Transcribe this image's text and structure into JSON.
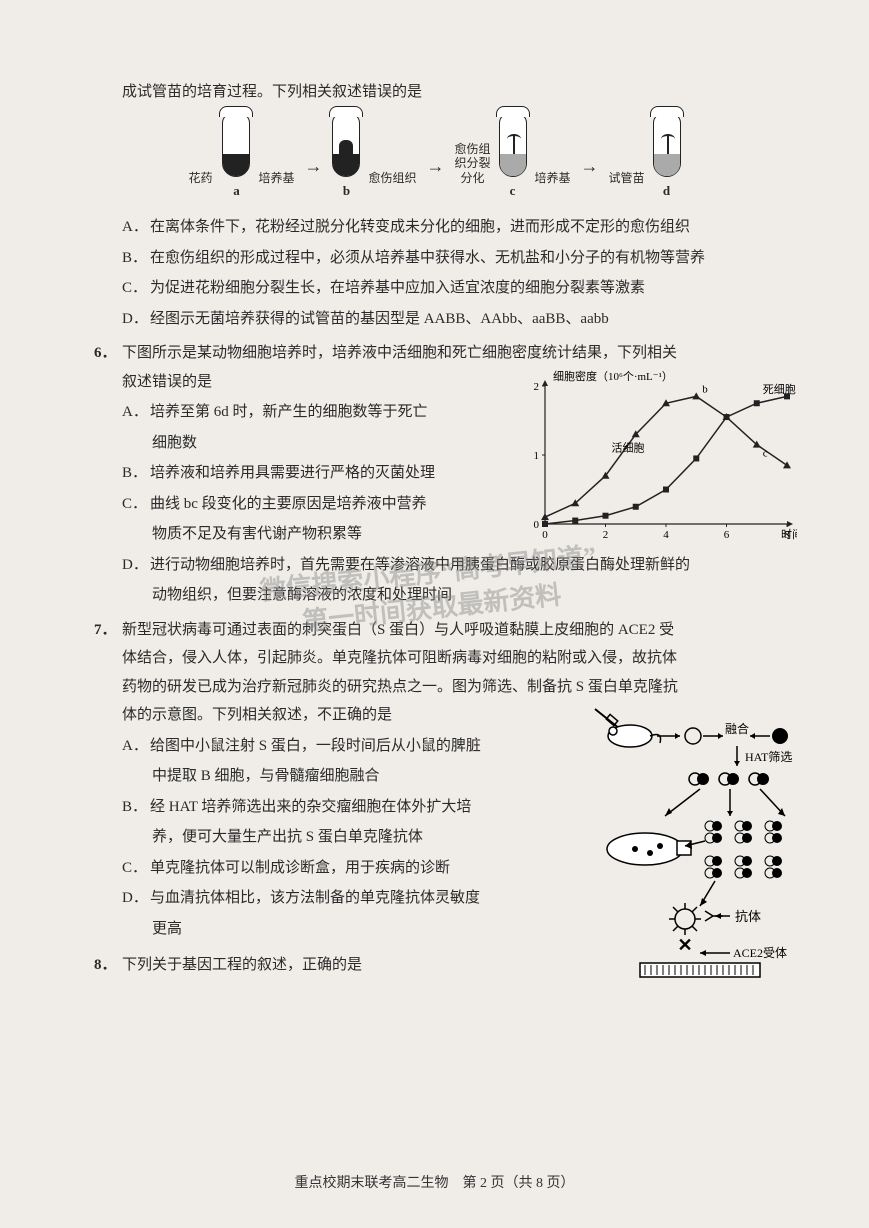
{
  "q5": {
    "stem_cont": "成试管苗的培育过程。下列相关叙述错误的是",
    "diagram": {
      "labels": {
        "anther": "花药",
        "medium": "培养基",
        "callus": "愈伤组织",
        "callus_div": "愈伤组\n织分裂\n分化",
        "plantlet": "试管苗"
      },
      "tube_ids": [
        "a",
        "b",
        "c",
        "d"
      ]
    },
    "A": "在离体条件下，花粉经过脱分化转变成未分化的细胞，进而形成不定形的愈伤组织",
    "B": "在愈伤组织的形成过程中，必须从培养基中获得水、无机盐和小分子的有机物等营养",
    "C": "为促进花粉细胞分裂生长，在培养基中应加入适宜浓度的细胞分裂素等激素",
    "D": "经图示无菌培养获得的试管苗的基因型是 AABB、AAbb、aaBB、aabb"
  },
  "q6": {
    "num": "6．",
    "stem1": "下图所示是某动物细胞培养时，培养液中活细胞和死亡细胞密度统计结果，下列相关",
    "stem2": "叙述错误的是",
    "A": "培养至第 6d 时，新产生的细胞数等于死亡",
    "A2": "细胞数",
    "B": "培养液和培养用具需要进行严格的灭菌处理",
    "C": "曲线 bc 段变化的主要原因是培养液中营养",
    "C2": "物质不足及有害代谢产物积累等",
    "D": "进行动物细胞培养时，首先需要在等渗溶液中用胰蛋白酶或胶原蛋白酶处理新鲜的",
    "D2": "动物组织，但要注意酶溶液的浓度和处理时间",
    "chart": {
      "title": "细胞密度（10⁶个·mL⁻¹）",
      "xlabel": "时间（d）",
      "live_label": "活细胞",
      "dead_label": "死细胞",
      "point_b": "b",
      "point_c": "c",
      "xlim": [
        0,
        8
      ],
      "xticks": [
        0,
        2,
        4,
        6,
        8
      ],
      "ylim": [
        0,
        2
      ],
      "yticks": [
        0,
        1,
        2
      ],
      "live_series": [
        [
          0,
          0.1
        ],
        [
          1,
          0.3
        ],
        [
          2,
          0.7
        ],
        [
          3,
          1.3
        ],
        [
          4,
          1.75
        ],
        [
          5,
          1.85
        ],
        [
          6,
          1.55
        ],
        [
          7,
          1.15
        ],
        [
          8,
          0.85
        ]
      ],
      "dead_series": [
        [
          0,
          0.0
        ],
        [
          1,
          0.05
        ],
        [
          2,
          0.12
        ],
        [
          3,
          0.25
        ],
        [
          4,
          0.5
        ],
        [
          5,
          0.95
        ],
        [
          6,
          1.55
        ],
        [
          7,
          1.75
        ],
        [
          8,
          1.85
        ]
      ],
      "axis_color": "#222",
      "live_color": "#222",
      "dead_color": "#222",
      "background_color": "transparent",
      "font_size": 11
    }
  },
  "q7": {
    "num": "7．",
    "p1": "新型冠状病毒可通过表面的刺突蛋白（S 蛋白）与人呼吸道黏膜上皮细胞的 ACE2 受",
    "p2": "体结合，侵入人体，引起肺炎。单克隆抗体可阻断病毒对细胞的粘附或入侵，故抗体",
    "p3": "药物的研发已成为治疗新冠肺炎的研究热点之一。图为筛选、制备抗 S 蛋白单克隆抗",
    "p4": "体的示意图。下列相关叙述，不正确的是",
    "A": "给图中小鼠注射 S 蛋白，一段时间后从小鼠的脾脏",
    "A2": "中提取 B 细胞，与骨髓瘤细胞融合",
    "B": "经 HAT 培养筛选出来的杂交瘤细胞在体外扩大培",
    "B2": "养，便可大量生产出抗 S 蛋白单克隆抗体",
    "C": "单克隆抗体可以制成诊断盒，用于疾病的诊断",
    "D": "与血清抗体相比，该方法制备的单克隆抗体灵敏度",
    "D2": "更高",
    "fig": {
      "fuse": "融合",
      "hat": "HAT筛选",
      "antibody": "抗体",
      "ace2": "ACE2受体"
    }
  },
  "q8": {
    "num": "8．",
    "stem": "下列关于基因工程的叙述，正确的是"
  },
  "footer": "重点校期末联考高二生物　第 2 页（共 8 页）",
  "watermark": {
    "l1": "微信搜索小程序“高考早知道”",
    "l2": "第一时间获取最新资料"
  }
}
